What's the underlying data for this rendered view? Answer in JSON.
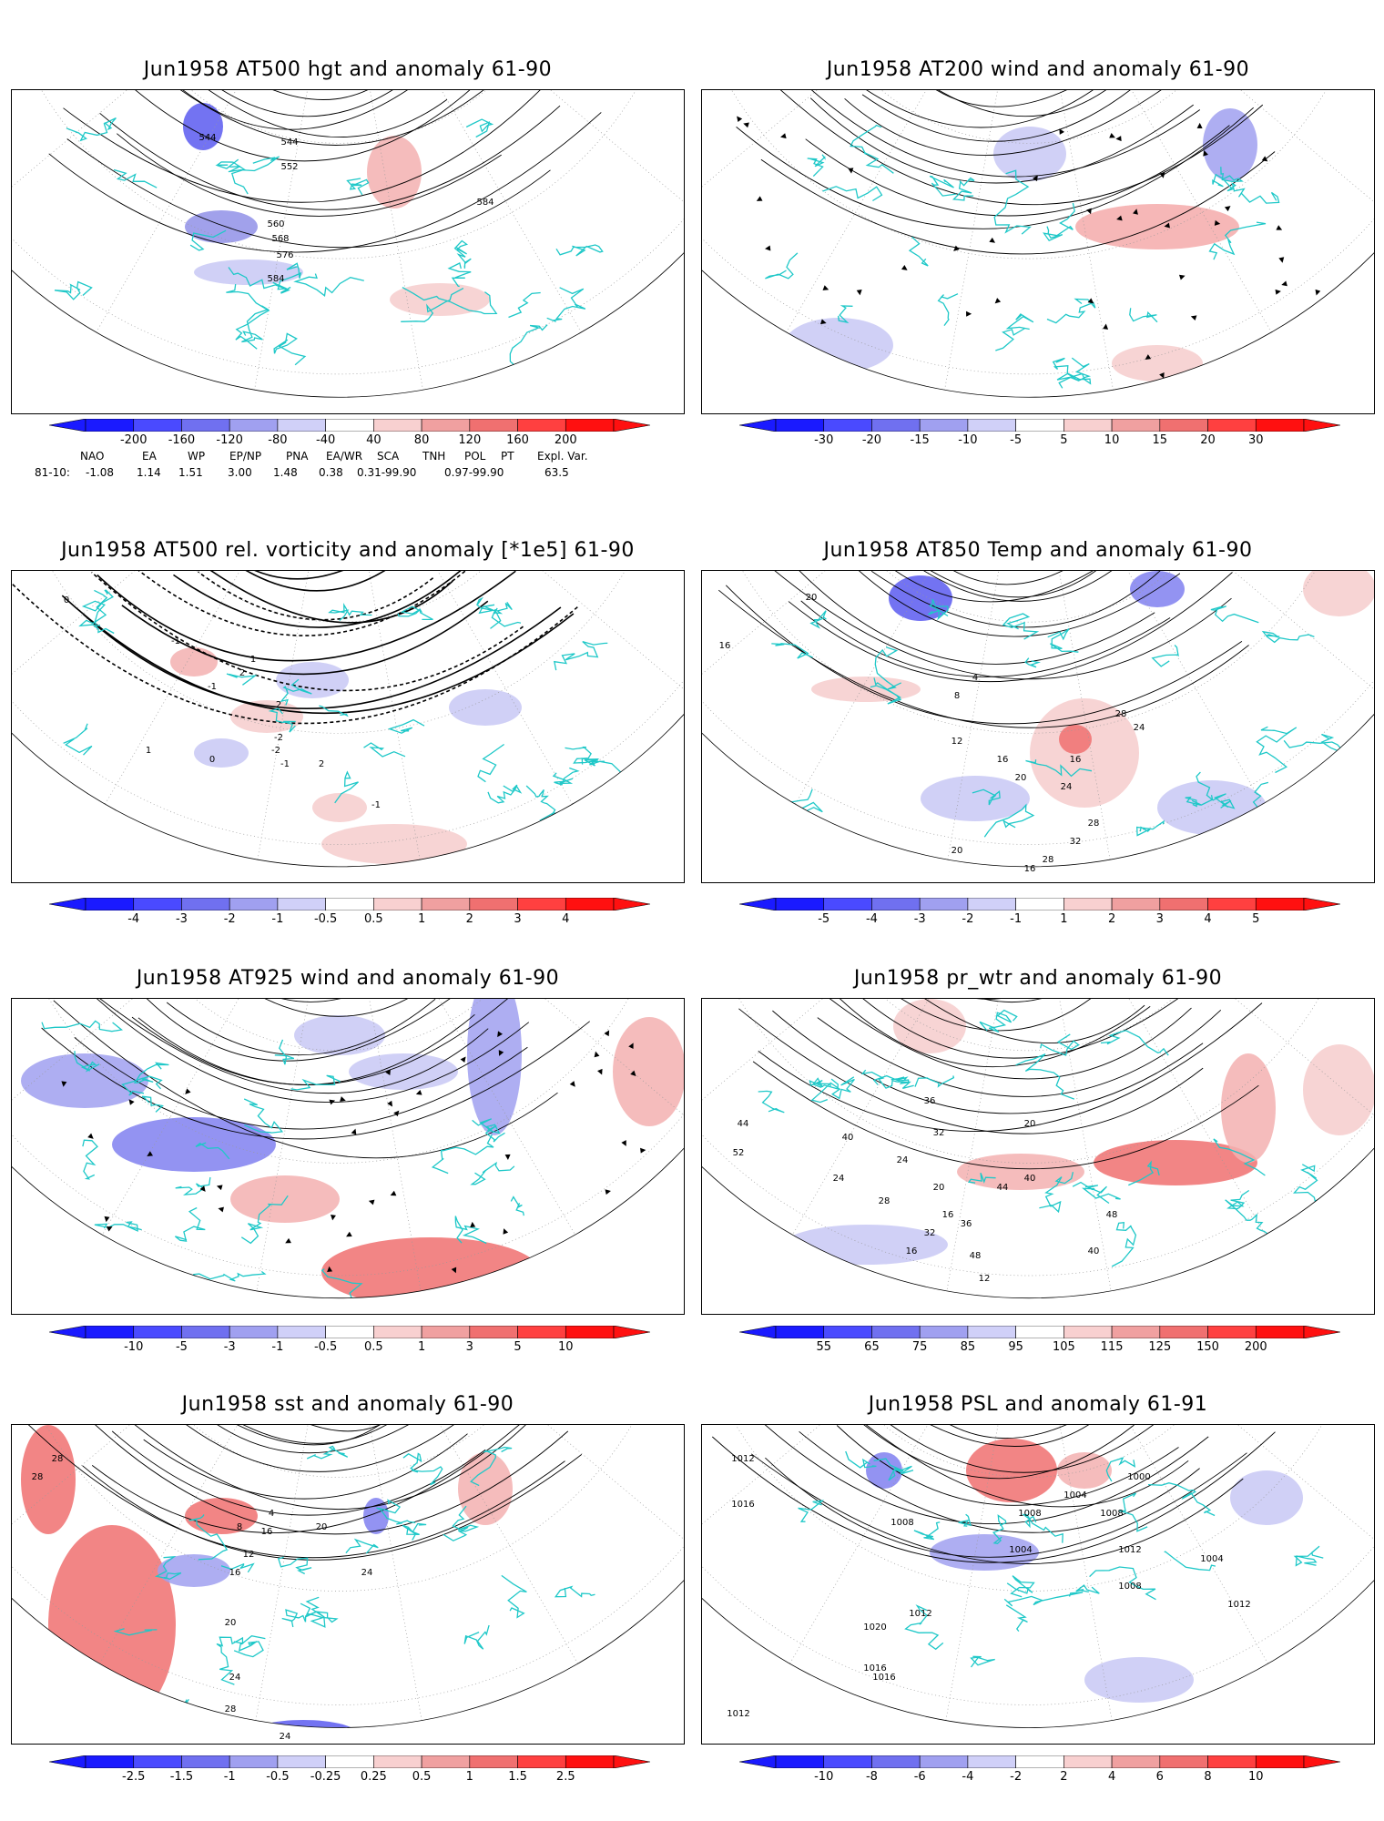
{
  "panels": [
    {
      "title": "Jun1958 AT500 hgt and anomaly 61-90",
      "colorbar": [
        "-200",
        "-160",
        "-120",
        "-80",
        "-40",
        "40",
        "80",
        "120",
        "160",
        "200"
      ],
      "contour_labels": [
        "544",
        "544",
        "552",
        "560",
        "568",
        "576",
        "584",
        "584"
      ]
    },
    {
      "title": "Jun1958 AT200 wind and anomaly 61-90",
      "colorbar": [
        "-30",
        "-20",
        "-15",
        "-10",
        "-5",
        "5",
        "10",
        "15",
        "20",
        "30"
      ],
      "contour_labels": []
    },
    {
      "title": "Jun1958 AT500 rel. vorticity and anomaly [*1e5] 61-90",
      "colorbar": [
        "-4",
        "-3",
        "-2",
        "-1",
        "-0.5",
        "0.5",
        "1",
        "2",
        "3",
        "4"
      ],
      "contour_labels": [
        "-1",
        "1",
        "2",
        "2",
        "-2",
        "-1",
        "0",
        "0",
        "1",
        "-1",
        "2",
        "-2",
        "0",
        "-1"
      ]
    },
    {
      "title": "Jun1958 AT850 Temp and anomaly 61-90",
      "colorbar": [
        "-5",
        "-4",
        "-3",
        "-2",
        "-1",
        "1",
        "2",
        "3",
        "4",
        "5"
      ],
      "contour_labels": [
        "20",
        "16",
        "4",
        "8",
        "12",
        "16",
        "20",
        "24",
        "28",
        "32",
        "28",
        "24",
        "20",
        "16",
        "16",
        "24",
        "28"
      ]
    },
    {
      "title": "Jun1958 AT925 wind and anomaly 61-90",
      "colorbar": [
        "-10",
        "-5",
        "-3",
        "-1",
        "-0.5",
        "0.5",
        "1",
        "3",
        "5",
        "10"
      ],
      "contour_labels": []
    },
    {
      "title": "Jun1958 pr_wtr and anomaly 61-90",
      "colorbar": [
        "55",
        "65",
        "75",
        "85",
        "95",
        "105",
        "115",
        "125",
        "150",
        "200"
      ],
      "contour_labels": [
        "44",
        "52",
        "40",
        "36",
        "32",
        "24",
        "20",
        "16",
        "48",
        "44",
        "40",
        "36",
        "32",
        "28",
        "24",
        "20",
        "16",
        "12",
        "48",
        "40"
      ]
    },
    {
      "title": "Jun1958 sst and anomaly 61-90",
      "colorbar": [
        "-2.5",
        "-1.5",
        "-1",
        "-0.5",
        "-0.25",
        "0.25",
        "0.5",
        "1",
        "1.5",
        "2.5"
      ],
      "contour_labels": [
        "28",
        "28",
        "24",
        "20",
        "16",
        "12",
        "8",
        "4",
        "28",
        "28",
        "24",
        "20",
        "16",
        "20",
        "24"
      ]
    },
    {
      "title": "Jun1958 PSL and anomaly 61-91",
      "colorbar": [
        "-10",
        "-8",
        "-6",
        "-4",
        "-2",
        "2",
        "4",
        "6",
        "8",
        "10"
      ],
      "contour_labels": [
        "1012",
        "1016",
        "1008",
        "1012",
        "1016",
        "1020",
        "1012",
        "1016",
        "1008",
        "1004",
        "1004",
        "1008",
        "1012",
        "1000",
        "1008",
        "1004",
        "1012"
      ]
    }
  ],
  "indices": {
    "names": [
      "NAO",
      "EA",
      "WP",
      "EP/NP",
      "PNA",
      "EA/WR",
      "SCA",
      "TNH",
      "POL",
      "PT",
      "Expl. Var."
    ],
    "period": "81-10:",
    "values": [
      "-1.08",
      "1.14",
      "1.51",
      "3.00",
      "1.48",
      "0.38",
      "0.31-99.90",
      "0.97-99.90",
      "63.5"
    ]
  },
  "colors": {
    "palette": [
      "#1a1aff",
      "#4a4aff",
      "#7070f0",
      "#a0a0f0",
      "#d0d0f8",
      "#ffffff",
      "#f8d0d0",
      "#f0a0a0",
      "#f07070",
      "#ff4040",
      "#ff1010"
    ],
    "coast": "#1fc8c8",
    "contour": "#000000"
  }
}
